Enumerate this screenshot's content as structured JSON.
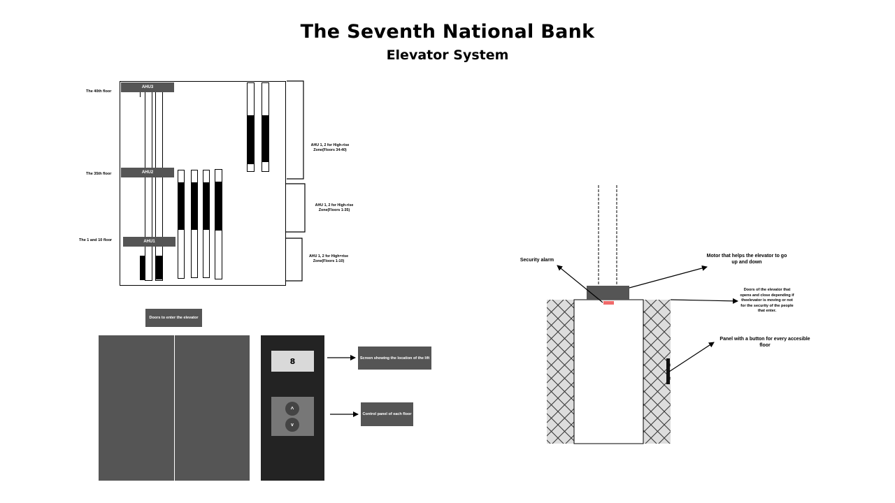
{
  "header": {
    "title": "The Seventh National Bank",
    "subtitle": "Elevator System"
  },
  "building": {
    "floor_labels": [
      "The 40th floor",
      "The 35th floor",
      "The 1 and 10 floor"
    ],
    "ahu_labels": [
      "AHU3",
      "AHU2",
      "AHU1"
    ],
    "zones": [
      "AHU 1, 2 for High-rise Zone(Floors 34-40)",
      "AHU 1, 2 for High-rise Zone(Floors 1-35)",
      "AHU 1, 2 for High=rise Zone(Floors 1-10)"
    ]
  },
  "entrance": {
    "doors_label": "Doors to enter the elevator",
    "screen_value": "8",
    "screen_label": "Screen showing the location of the lift",
    "control_label": "Control panel of each floor",
    "up_icon": "^",
    "down_icon": "v"
  },
  "cabin_diagram": {
    "security_alarm": "Security alarm",
    "motor": "Motor that helps the elevator to go up and down",
    "doors": "Doors of the elevator that opens and close depending if theelevator is moving or not for the security of the people that enter.",
    "panel": "Panel with a button for every accesible floor",
    "colors": {
      "motor": "#555555",
      "alarm": "#f06a6a",
      "wall": "#dddddd"
    }
  }
}
